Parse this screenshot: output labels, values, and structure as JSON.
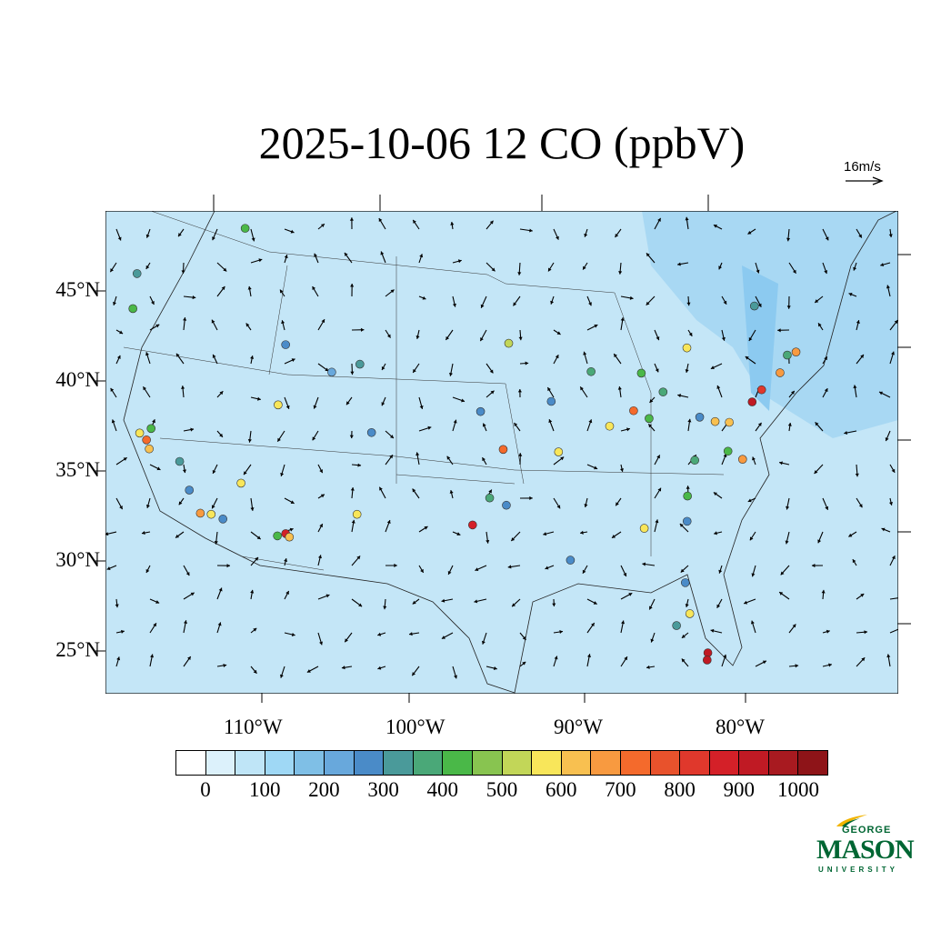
{
  "title": "2025-10-06 12 CO (ppbV)",
  "reference_vector": "16m/s",
  "lat_labels": [
    "45°N",
    "40°N",
    "35°N",
    "30°N",
    "25°N"
  ],
  "lon_labels": [
    "110°W",
    "100°W",
    "90°W",
    "80°W"
  ],
  "colorbar": {
    "labels": [
      "0",
      "100",
      "200",
      "300",
      "400",
      "500",
      "600",
      "700",
      "800",
      "900",
      "1000"
    ],
    "colors": [
      "#ffffff",
      "#dcf1fb",
      "#bfe5f7",
      "#9fd8f5",
      "#7fbfe6",
      "#68a8dc",
      "#4a8bc8",
      "#4a9a9a",
      "#4aa878",
      "#4ab848",
      "#88c450",
      "#c2d658",
      "#f8e65a",
      "#f8c050",
      "#f89a40",
      "#f46a2c",
      "#e8522c",
      "#e0382c",
      "#d42028",
      "#c01a24",
      "#a81a20",
      "#8e1418"
    ]
  },
  "chart_data": {
    "type": "map",
    "variable": "CO (ppbV)",
    "background_level": "100-150",
    "stations": [
      {
        "lon": -109.1,
        "lat": 48.7,
        "v": 420
      },
      {
        "lon": -115.8,
        "lat": 46.5,
        "v": 320
      },
      {
        "lon": -116.6,
        "lat": 44.6,
        "v": 420
      },
      {
        "lon": -118.4,
        "lat": 37.8,
        "v": 560
      },
      {
        "lon": -118.1,
        "lat": 37.4,
        "v": 720
      },
      {
        "lon": -118.1,
        "lat": 36.9,
        "v": 640
      },
      {
        "lon": -117.6,
        "lat": 38.0,
        "v": 420
      },
      {
        "lon": -116.4,
        "lat": 36.1,
        "v": 320
      },
      {
        "lon": -116.3,
        "lat": 34.5,
        "v": 260
      },
      {
        "lon": -116.0,
        "lat": 33.2,
        "v": 660
      },
      {
        "lon": -115.3,
        "lat": 33.1,
        "v": 560
      },
      {
        "lon": -114.6,
        "lat": 32.8,
        "v": 260
      },
      {
        "lon": -112.8,
        "lat": 34.7,
        "v": 560
      },
      {
        "lon": -110.6,
        "lat": 31.8,
        "v": 880
      },
      {
        "lon": -111.2,
        "lat": 31.7,
        "v": 420
      },
      {
        "lon": -110.4,
        "lat": 31.6,
        "v": 640
      },
      {
        "lon": -108.1,
        "lat": 42.2,
        "v": 260
      },
      {
        "lon": -109.3,
        "lat": 38.9,
        "v": 560
      },
      {
        "lon": -105.6,
        "lat": 40.6,
        "v": 220
      },
      {
        "lon": -103.8,
        "lat": 41.0,
        "v": 310
      },
      {
        "lon": -103.7,
        "lat": 37.2,
        "v": 260
      },
      {
        "lon": -105.5,
        "lat": 32.7,
        "v": 560
      },
      {
        "lon": -97.7,
        "lat": 32.0,
        "v": 880
      },
      {
        "lon": -95.3,
        "lat": 36.2,
        "v": 720
      },
      {
        "lon": -95.3,
        "lat": 33.1,
        "v": 260
      },
      {
        "lon": -96.4,
        "lat": 33.5,
        "v": 360
      },
      {
        "lon": -96.6,
        "lat": 38.3,
        "v": 260
      },
      {
        "lon": -94.6,
        "lat": 42.1,
        "v": 520
      },
      {
        "lon": -92.1,
        "lat": 38.9,
        "v": 260
      },
      {
        "lon": -91.7,
        "lat": 36.1,
        "v": 560
      },
      {
        "lon": -91.0,
        "lat": 30.1,
        "v": 260
      },
      {
        "lon": -89.6,
        "lat": 40.6,
        "v": 360
      },
      {
        "lon": -88.4,
        "lat": 37.6,
        "v": 560
      },
      {
        "lon": -86.9,
        "lat": 38.5,
        "v": 720
      },
      {
        "lon": -85.9,
        "lat": 38.1,
        "v": 420
      },
      {
        "lon": -86.5,
        "lat": 40.6,
        "v": 420
      },
      {
        "lon": -85.1,
        "lat": 39.6,
        "v": 360
      },
      {
        "lon": -83.8,
        "lat": 42.1,
        "v": 560
      },
      {
        "lon": -82.7,
        "lat": 38.3,
        "v": 260
      },
      {
        "lon": -81.7,
        "lat": 38.1,
        "v": 620
      },
      {
        "lon": -80.8,
        "lat": 38.1,
        "v": 620
      },
      {
        "lon": -80.7,
        "lat": 36.5,
        "v": 420
      },
      {
        "lon": -79.7,
        "lat": 36.1,
        "v": 660
      },
      {
        "lon": -82.8,
        "lat": 35.9,
        "v": 360
      },
      {
        "lon": -83.1,
        "lat": 33.9,
        "v": 420
      },
      {
        "lon": -83.0,
        "lat": 32.5,
        "v": 260
      },
      {
        "lon": -85.9,
        "lat": 32.0,
        "v": 560
      },
      {
        "lon": -82.8,
        "lat": 29.1,
        "v": 260
      },
      {
        "lon": -82.3,
        "lat": 27.4,
        "v": 560
      },
      {
        "lon": -83.2,
        "lat": 26.7,
        "v": 320
      },
      {
        "lon": -80.7,
        "lat": 25.3,
        "v": 920
      },
      {
        "lon": -80.7,
        "lat": 24.9,
        "v": 920
      },
      {
        "lon": -79.5,
        "lat": 39.3,
        "v": 920
      },
      {
        "lon": -79.0,
        "lat": 40.0,
        "v": 820
      },
      {
        "lon": -78.0,
        "lat": 41.0,
        "v": 660
      },
      {
        "lon": -77.2,
        "lat": 42.2,
        "v": 660
      },
      {
        "lon": -77.7,
        "lat": 42.0,
        "v": 360
      },
      {
        "lon": -80.0,
        "lat": 44.6,
        "v": 320
      }
    ]
  },
  "logo": {
    "top": "GEORGE",
    "main": "MASON",
    "bottom": "UNIVERSITY"
  }
}
